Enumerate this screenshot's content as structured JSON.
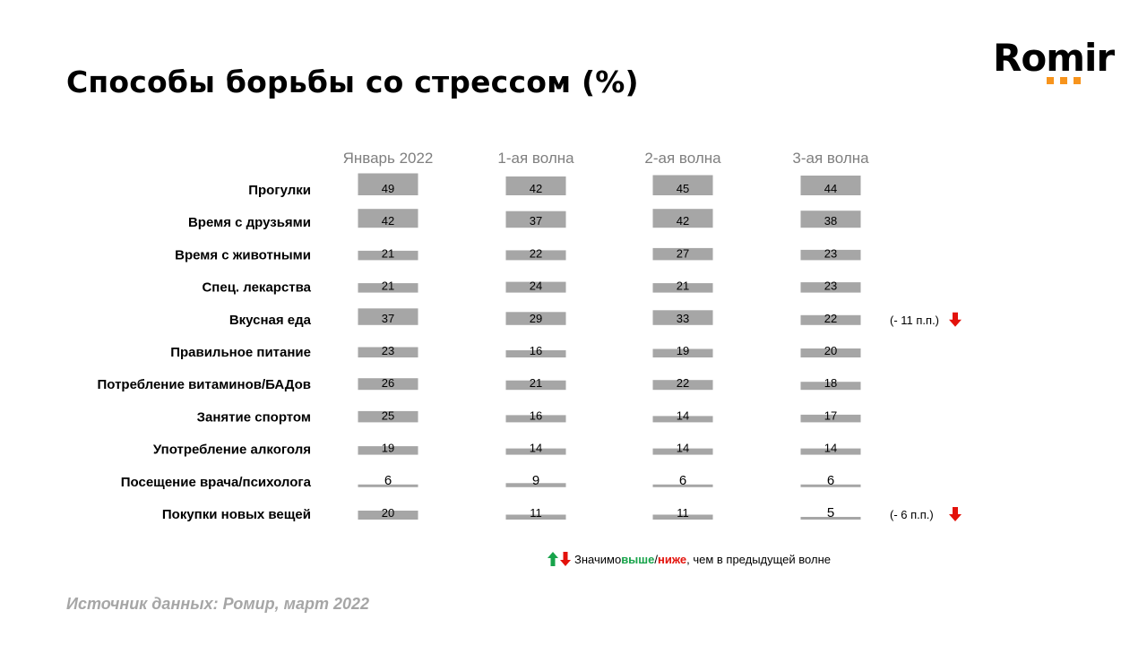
{
  "title": "Способы борьбы со стрессом (%)",
  "logo": {
    "text": "Romir",
    "accent_color": "#f7941d"
  },
  "colors": {
    "bar": "#a6a6a6",
    "header": "#7f7f7f",
    "up": "#17a34a",
    "down": "#e3120b",
    "source": "#a6a6a6"
  },
  "chart_data": {
    "type": "bar",
    "columns": [
      "Январь 2022",
      "1-ая волна",
      "2-ая волна",
      "3-ая волна"
    ],
    "categories": [
      "Прогулки",
      "Время с друзьями",
      "Время с животными",
      "Спец. лекарства",
      "Вкусная еда",
      "Правильное питание",
      "Потребление витаминов/БАДов",
      "Занятие спортом",
      "Употребление алкоголя",
      "Посещение врача/психолога",
      "Покупки новых вещей"
    ],
    "series": [
      {
        "name": "Январь 2022",
        "values": [
          49,
          42,
          21,
          21,
          37,
          23,
          26,
          25,
          19,
          6,
          20
        ]
      },
      {
        "name": "1-ая волна",
        "values": [
          42,
          37,
          22,
          24,
          29,
          16,
          21,
          16,
          14,
          9,
          11
        ]
      },
      {
        "name": "2-ая волна",
        "values": [
          45,
          42,
          27,
          21,
          33,
          19,
          22,
          14,
          14,
          6,
          11
        ]
      },
      {
        "name": "3-ая волна",
        "values": [
          44,
          38,
          23,
          23,
          22,
          20,
          18,
          17,
          14,
          6,
          5
        ]
      }
    ],
    "annotations": [
      {
        "category": "Вкусная еда",
        "text": "(- 11 п.п.)",
        "direction": "down"
      },
      {
        "category": "Покупки новых вещей",
        "text": "(- 6 п.п.)",
        "direction": "down"
      }
    ]
  },
  "legend": {
    "prefix": "Значимо ",
    "higher": "выше",
    "separator": " / ",
    "lower": "ниже",
    "suffix": ", чем в  предыдущей волне"
  },
  "source": "Источник данных: Ромир, март 2022"
}
